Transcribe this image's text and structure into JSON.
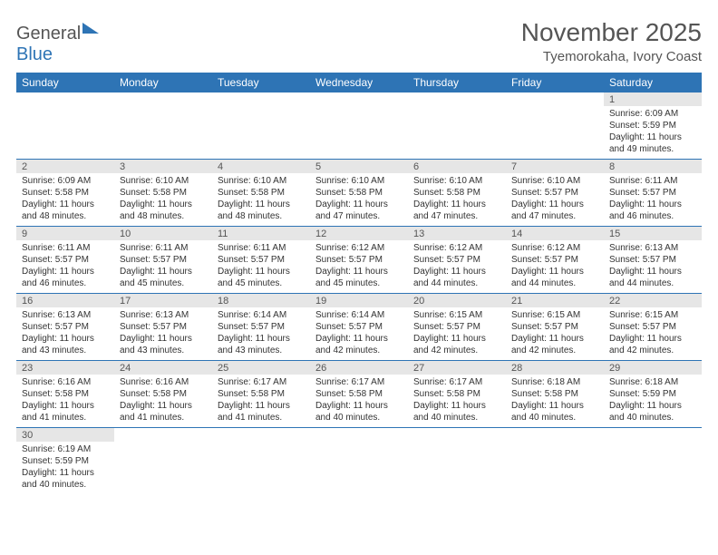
{
  "brand": {
    "general": "General",
    "blue": "Blue"
  },
  "title": "November 2025",
  "location": "Tyemorokaha, Ivory Coast",
  "day_headers": [
    "Sunday",
    "Monday",
    "Tuesday",
    "Wednesday",
    "Thursday",
    "Friday",
    "Saturday"
  ],
  "colors": {
    "header_bg": "#2e74b5",
    "header_text": "#ffffff",
    "daynum_bg": "#e6e6e6",
    "border": "#2e74b5",
    "text": "#333333",
    "background": "#ffffff"
  },
  "typography": {
    "body_font": "Arial",
    "title_fontsize": 28,
    "location_fontsize": 15,
    "header_fontsize": 12,
    "daynum_fontsize": 11,
    "cell_fontsize": 10
  },
  "weeks": [
    {
      "days": [
        null,
        null,
        null,
        null,
        null,
        null,
        {
          "n": "1",
          "sunrise": "Sunrise: 6:09 AM",
          "sunset": "Sunset: 5:59 PM",
          "daylight1": "Daylight: 11 hours",
          "daylight2": "and 49 minutes."
        }
      ]
    },
    {
      "days": [
        {
          "n": "2",
          "sunrise": "Sunrise: 6:09 AM",
          "sunset": "Sunset: 5:58 PM",
          "daylight1": "Daylight: 11 hours",
          "daylight2": "and 48 minutes."
        },
        {
          "n": "3",
          "sunrise": "Sunrise: 6:10 AM",
          "sunset": "Sunset: 5:58 PM",
          "daylight1": "Daylight: 11 hours",
          "daylight2": "and 48 minutes."
        },
        {
          "n": "4",
          "sunrise": "Sunrise: 6:10 AM",
          "sunset": "Sunset: 5:58 PM",
          "daylight1": "Daylight: 11 hours",
          "daylight2": "and 48 minutes."
        },
        {
          "n": "5",
          "sunrise": "Sunrise: 6:10 AM",
          "sunset": "Sunset: 5:58 PM",
          "daylight1": "Daylight: 11 hours",
          "daylight2": "and 47 minutes."
        },
        {
          "n": "6",
          "sunrise": "Sunrise: 6:10 AM",
          "sunset": "Sunset: 5:58 PM",
          "daylight1": "Daylight: 11 hours",
          "daylight2": "and 47 minutes."
        },
        {
          "n": "7",
          "sunrise": "Sunrise: 6:10 AM",
          "sunset": "Sunset: 5:57 PM",
          "daylight1": "Daylight: 11 hours",
          "daylight2": "and 47 minutes."
        },
        {
          "n": "8",
          "sunrise": "Sunrise: 6:11 AM",
          "sunset": "Sunset: 5:57 PM",
          "daylight1": "Daylight: 11 hours",
          "daylight2": "and 46 minutes."
        }
      ]
    },
    {
      "days": [
        {
          "n": "9",
          "sunrise": "Sunrise: 6:11 AM",
          "sunset": "Sunset: 5:57 PM",
          "daylight1": "Daylight: 11 hours",
          "daylight2": "and 46 minutes."
        },
        {
          "n": "10",
          "sunrise": "Sunrise: 6:11 AM",
          "sunset": "Sunset: 5:57 PM",
          "daylight1": "Daylight: 11 hours",
          "daylight2": "and 45 minutes."
        },
        {
          "n": "11",
          "sunrise": "Sunrise: 6:11 AM",
          "sunset": "Sunset: 5:57 PM",
          "daylight1": "Daylight: 11 hours",
          "daylight2": "and 45 minutes."
        },
        {
          "n": "12",
          "sunrise": "Sunrise: 6:12 AM",
          "sunset": "Sunset: 5:57 PM",
          "daylight1": "Daylight: 11 hours",
          "daylight2": "and 45 minutes."
        },
        {
          "n": "13",
          "sunrise": "Sunrise: 6:12 AM",
          "sunset": "Sunset: 5:57 PM",
          "daylight1": "Daylight: 11 hours",
          "daylight2": "and 44 minutes."
        },
        {
          "n": "14",
          "sunrise": "Sunrise: 6:12 AM",
          "sunset": "Sunset: 5:57 PM",
          "daylight1": "Daylight: 11 hours",
          "daylight2": "and 44 minutes."
        },
        {
          "n": "15",
          "sunrise": "Sunrise: 6:13 AM",
          "sunset": "Sunset: 5:57 PM",
          "daylight1": "Daylight: 11 hours",
          "daylight2": "and 44 minutes."
        }
      ]
    },
    {
      "days": [
        {
          "n": "16",
          "sunrise": "Sunrise: 6:13 AM",
          "sunset": "Sunset: 5:57 PM",
          "daylight1": "Daylight: 11 hours",
          "daylight2": "and 43 minutes."
        },
        {
          "n": "17",
          "sunrise": "Sunrise: 6:13 AM",
          "sunset": "Sunset: 5:57 PM",
          "daylight1": "Daylight: 11 hours",
          "daylight2": "and 43 minutes."
        },
        {
          "n": "18",
          "sunrise": "Sunrise: 6:14 AM",
          "sunset": "Sunset: 5:57 PM",
          "daylight1": "Daylight: 11 hours",
          "daylight2": "and 43 minutes."
        },
        {
          "n": "19",
          "sunrise": "Sunrise: 6:14 AM",
          "sunset": "Sunset: 5:57 PM",
          "daylight1": "Daylight: 11 hours",
          "daylight2": "and 42 minutes."
        },
        {
          "n": "20",
          "sunrise": "Sunrise: 6:15 AM",
          "sunset": "Sunset: 5:57 PM",
          "daylight1": "Daylight: 11 hours",
          "daylight2": "and 42 minutes."
        },
        {
          "n": "21",
          "sunrise": "Sunrise: 6:15 AM",
          "sunset": "Sunset: 5:57 PM",
          "daylight1": "Daylight: 11 hours",
          "daylight2": "and 42 minutes."
        },
        {
          "n": "22",
          "sunrise": "Sunrise: 6:15 AM",
          "sunset": "Sunset: 5:57 PM",
          "daylight1": "Daylight: 11 hours",
          "daylight2": "and 42 minutes."
        }
      ]
    },
    {
      "days": [
        {
          "n": "23",
          "sunrise": "Sunrise: 6:16 AM",
          "sunset": "Sunset: 5:58 PM",
          "daylight1": "Daylight: 11 hours",
          "daylight2": "and 41 minutes."
        },
        {
          "n": "24",
          "sunrise": "Sunrise: 6:16 AM",
          "sunset": "Sunset: 5:58 PM",
          "daylight1": "Daylight: 11 hours",
          "daylight2": "and 41 minutes."
        },
        {
          "n": "25",
          "sunrise": "Sunrise: 6:17 AM",
          "sunset": "Sunset: 5:58 PM",
          "daylight1": "Daylight: 11 hours",
          "daylight2": "and 41 minutes."
        },
        {
          "n": "26",
          "sunrise": "Sunrise: 6:17 AM",
          "sunset": "Sunset: 5:58 PM",
          "daylight1": "Daylight: 11 hours",
          "daylight2": "and 40 minutes."
        },
        {
          "n": "27",
          "sunrise": "Sunrise: 6:17 AM",
          "sunset": "Sunset: 5:58 PM",
          "daylight1": "Daylight: 11 hours",
          "daylight2": "and 40 minutes."
        },
        {
          "n": "28",
          "sunrise": "Sunrise: 6:18 AM",
          "sunset": "Sunset: 5:58 PM",
          "daylight1": "Daylight: 11 hours",
          "daylight2": "and 40 minutes."
        },
        {
          "n": "29",
          "sunrise": "Sunrise: 6:18 AM",
          "sunset": "Sunset: 5:59 PM",
          "daylight1": "Daylight: 11 hours",
          "daylight2": "and 40 minutes."
        }
      ]
    },
    {
      "days": [
        {
          "n": "30",
          "sunrise": "Sunrise: 6:19 AM",
          "sunset": "Sunset: 5:59 PM",
          "daylight1": "Daylight: 11 hours",
          "daylight2": "and 40 minutes."
        },
        null,
        null,
        null,
        null,
        null,
        null
      ]
    }
  ]
}
